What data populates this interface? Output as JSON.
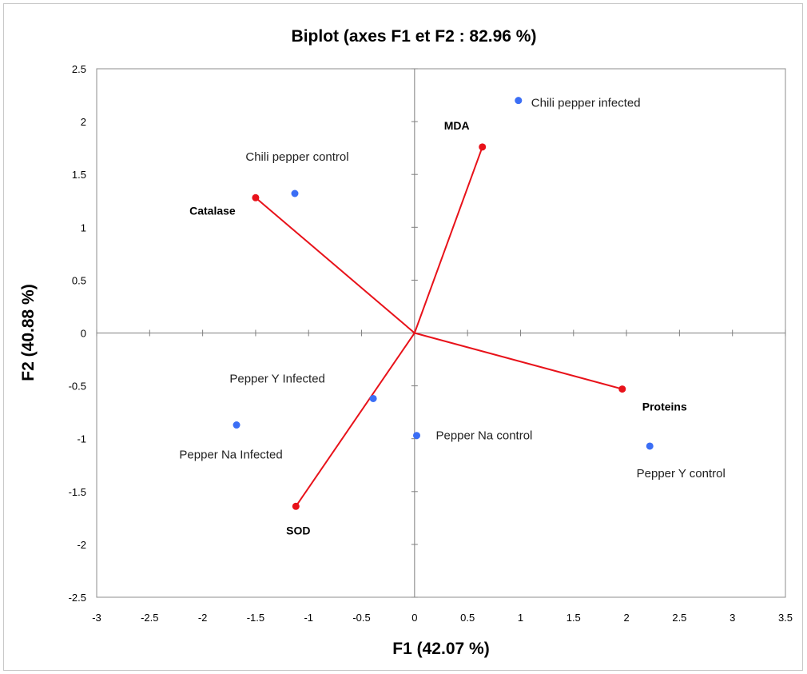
{
  "chart_data": {
    "type": "scatter",
    "title": "Biplot (axes F1 et F2 : 82.96 %)",
    "xlabel": "F1 (42.07 %)",
    "ylabel": "F2 (40.88 %)",
    "xlim": [
      -3,
      3.5
    ],
    "ylim": [
      -2.5,
      2.5
    ],
    "x_ticks": [
      "-3",
      "-2.5",
      "-2",
      "-1.5",
      "-1",
      "-0.5",
      "0",
      "0.5",
      "1",
      "1.5",
      "2",
      "2.5",
      "3",
      "3.5"
    ],
    "y_ticks": [
      "2.5",
      "2",
      "1.5",
      "1",
      "0.5",
      "0",
      "-0.5",
      "-1",
      "-1.5",
      "-2",
      "-2.5"
    ],
    "grid": false,
    "legend": "none",
    "colors": {
      "observations": "#3b6ef5",
      "variables": "#e8121a"
    },
    "observations": [
      {
        "name": "Chili pepper infected",
        "x": 0.98,
        "y": 2.2
      },
      {
        "name": "Chili pepper control",
        "x": -1.13,
        "y": 1.32
      },
      {
        "name": "Pepper Y Infected",
        "x": -0.39,
        "y": -0.62
      },
      {
        "name": "Pepper Na Infected",
        "x": -1.68,
        "y": -0.87
      },
      {
        "name": "Pepper Na control",
        "x": 0.02,
        "y": -0.97
      },
      {
        "name": "Pepper Y control",
        "x": 2.22,
        "y": -1.07
      }
    ],
    "variables": [
      {
        "name": "MDA",
        "x": 0.64,
        "y": 1.76
      },
      {
        "name": "Catalase",
        "x": -1.5,
        "y": 1.28
      },
      {
        "name": "Proteins",
        "x": 1.96,
        "y": -0.53
      },
      {
        "name": "SOD",
        "x": -1.12,
        "y": -1.64
      }
    ]
  }
}
